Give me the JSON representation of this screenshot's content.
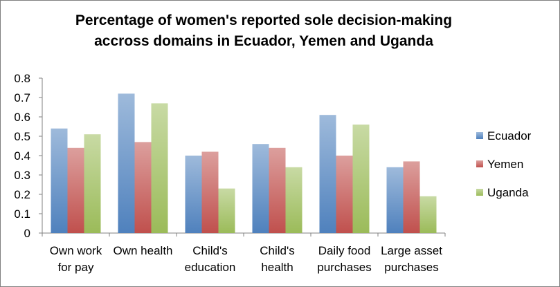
{
  "chart_data": {
    "type": "bar",
    "title": "Percentage of women's reported sole decision-making\naccross domains in Ecuador, Yemen and Uganda",
    "xlabel": "",
    "ylabel": "",
    "ylim": [
      0,
      0.8
    ],
    "yticks": [
      "0",
      "0.1",
      "0.2",
      "0.3",
      "0.4",
      "0.5",
      "0.6",
      "0.7",
      "0.8"
    ],
    "grid": false,
    "legend_position": "right",
    "categories": [
      [
        "Own work",
        "for pay"
      ],
      [
        "Own health"
      ],
      [
        "Child's",
        "education"
      ],
      [
        "Child's",
        "health"
      ],
      [
        "Daily food",
        "purchases"
      ],
      [
        "Large asset",
        "purchases"
      ]
    ],
    "series": [
      {
        "name": "Ecuador",
        "color": "#4f81bd",
        "values": [
          0.54,
          0.72,
          0.4,
          0.46,
          0.61,
          0.34
        ]
      },
      {
        "name": "Yemen",
        "color": "#c0504d",
        "values": [
          0.44,
          0.47,
          0.42,
          0.44,
          0.4,
          0.37
        ]
      },
      {
        "name": "Uganda",
        "color": "#9bbb59",
        "values": [
          0.51,
          0.67,
          0.23,
          0.34,
          0.56,
          0.19
        ]
      }
    ]
  }
}
